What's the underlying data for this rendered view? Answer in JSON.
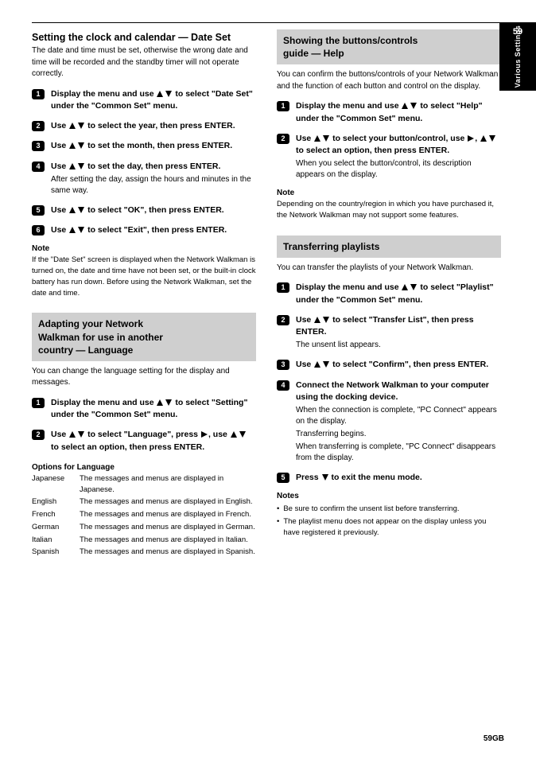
{
  "tab": {
    "page_number": "59",
    "side_label": "Various Settings"
  },
  "footer": {
    "page": "59GB"
  },
  "left": {
    "title": "Setting the clock and calendar — Date Set",
    "intro": "The date and time must be set, otherwise the wrong date and time will be recorded and the standby timer will not operate correctly.",
    "steps": {
      "1": {
        "text_before": "Display the menu and use ",
        "text_mid": " to select ",
        "text_q": "\"Date Set\"",
        "text_after": " under the ",
        "text_q2": "\"Common Set\"",
        "text_end": " menu."
      },
      "2": {
        "text_before": "Use ",
        "text_after": " to select the year, then press ENTER."
      },
      "3": {
        "text_before": "Use ",
        "text_after": " to set the month, then press ENTER."
      },
      "4": {
        "text_before": "Use ",
        "text_after": " to set the day, then press ENTER.",
        "sub": "After setting the day, assign the hours and minutes in the same way."
      },
      "5": {
        "text_before": "Use ",
        "text_after": " to select ",
        "q": "\"OK\"",
        "end": ", then press ENTER."
      },
      "6": {
        "text_before": "Use ",
        "text_after": " to select ",
        "q": "\"Exit\"",
        "end": ", then press ENTER."
      }
    },
    "note": {
      "head": "Note",
      "body": "If the \"Date Set\" screen is displayed when the Network Walkman is turned on, the date and time have not been set, or the built-in clock battery has run down. Before using the Network Walkman, set the date and time."
    },
    "header2_line1": "Adapting your Network",
    "header2_line2": "Walkman for use in another",
    "header2_line3": "country — Language",
    "header2_sub": "You can change the language setting for the display and messages.",
    "steps2": {
      "1": {
        "text_before": "Display the menu and use ",
        "text_mid": " to select ",
        "q": "\"Setting\"",
        "after": " under the ",
        "q2": "\"Common Set\"",
        "end": " menu."
      },
      "2": {
        "line1_before": "Use ",
        "line1_after": " to select ",
        "line1_q": "\"Language\"",
        "line1_end": ", press ",
        "line2_before": "",
        "line2_glyph": "right",
        "line2_after": ", use ",
        "line2_end": " to select an option, then press ENTER."
      }
    },
    "options": {
      "head": "Options for Language",
      "rows": [
        [
          "Japanese",
          "The messages and menus are displayed in Japanese."
        ],
        [
          "English",
          "The messages and menus are displayed in English."
        ],
        [
          "French",
          "The messages and menus are displayed in French."
        ],
        [
          "German",
          "The messages and menus are displayed in German."
        ],
        [
          "Italian",
          "The messages and menus are displayed in Italian."
        ],
        [
          "Spanish",
          "The messages and menus are displayed in Spanish."
        ]
      ]
    }
  },
  "right": {
    "header1_line1": "Showing the buttons/controls",
    "header1_line2": "guide — Help",
    "header1_sub": "You can confirm the buttons/controls of your Network Walkman and the function of each button and control on the display.",
    "steps1": {
      "1": {
        "before": "Display the menu and use ",
        "mid": " to select ",
        "q": "\"Help\"",
        "after": " under the ",
        "q2": "\"Common Set\"",
        "end": " menu."
      },
      "2": {
        "l1_before": "Use ",
        "l1_after": " to select your button/control, use ",
        "l2_before": "",
        "l2_after": ", ",
        "l2_end": " to select an option, then press ENTER.",
        "sub": "When you select the button/control, its description appears on the display."
      }
    },
    "note1": {
      "head": "Note",
      "body": "Depending on the country/region in which you have purchased it, the Network Walkman may not support some features."
    },
    "header2": "Transferring playlists",
    "header2_sub": "You can transfer the playlists of your Network Walkman.",
    "steps2": {
      "1": {
        "before": "Display the menu and use ",
        "mid": " to select ",
        "q": "\"Playlist\"",
        "after": " under the ",
        "q2": "\"Common Set\"",
        "end": " menu."
      },
      "2": {
        "before": "Use ",
        "after": " to select ",
        "q": "\"Transfer List\"",
        "end": ", then press ENTER.",
        "sub": "The unsent list appears."
      },
      "3": {
        "before": "Use ",
        "after": " to select ",
        "q": "\"Confirm\"",
        "end": ", then press ENTER."
      },
      "4": {
        "line": "Connect the Network Walkman to your computer using the docking device.",
        "sub1": "When the connection is complete, \"PC Connect\" appears on the display.",
        "sub2": "Transferring begins.",
        "sub3": "When transferring is complete, \"PC Connect\" disappears from the display."
      },
      "5": {
        "before": "Press ",
        "tri": "down",
        "after": " to exit the menu mode."
      }
    },
    "notes2": {
      "head": "Notes",
      "items": [
        "Be sure to confirm the unsent list before transferring.",
        "The playlist menu does not appear on the display unless you have registered it previously."
      ]
    }
  }
}
